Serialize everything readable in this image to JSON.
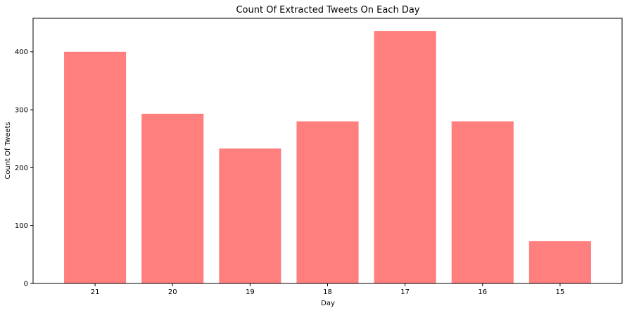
{
  "chart_data": {
    "type": "bar",
    "title": "Count Of Extracted Tweets On Each Day",
    "xlabel": "Day",
    "ylabel": "Count Of Tweets",
    "categories": [
      "21",
      "20",
      "19",
      "18",
      "17",
      "16",
      "15"
    ],
    "values": [
      400,
      293,
      233,
      280,
      436,
      280,
      73
    ],
    "ylim": [
      0,
      458
    ],
    "yticks": [
      0,
      100,
      200,
      300,
      400
    ],
    "grid": false,
    "bar_color": "#ff7f7f"
  }
}
